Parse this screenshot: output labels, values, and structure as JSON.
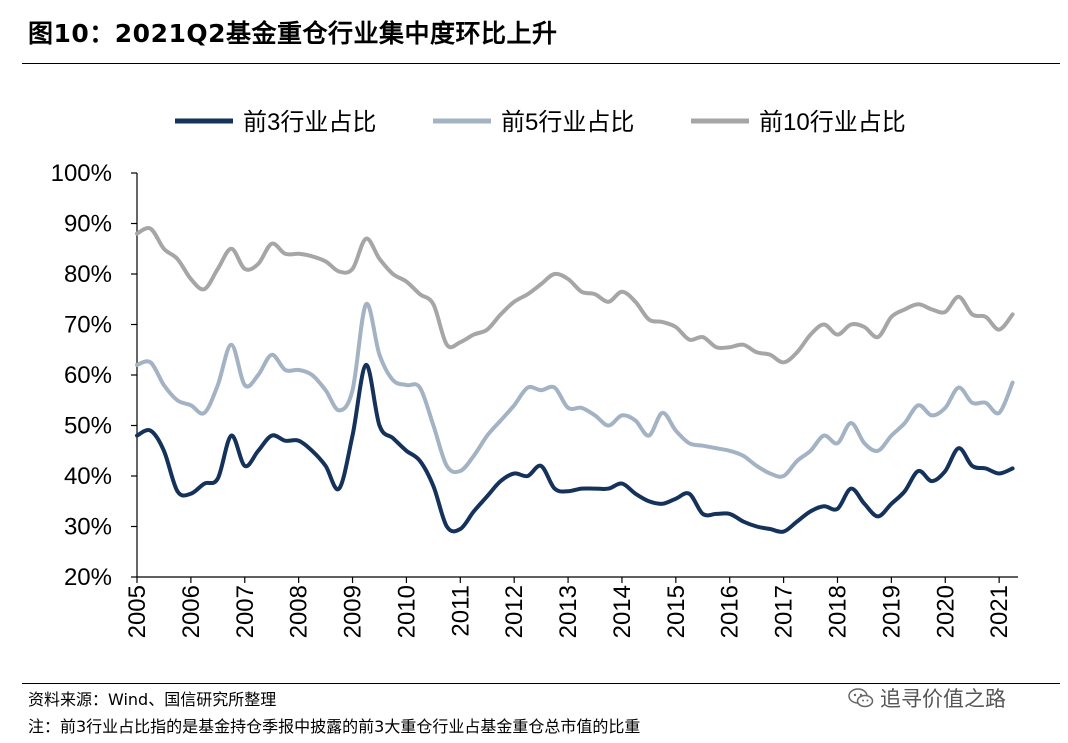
{
  "title": "图10：2021Q2基金重仓行业集中度环比上升",
  "footer": {
    "source": "资料来源：Wind、国信研究所整理",
    "note": "注：前3行业占比指的是基金持仓季报中披露的前3大重仓行业占基金重仓总市值的比重"
  },
  "watermark": {
    "text": "追寻价值之路",
    "icon": "wechat-icon"
  },
  "chart_data": {
    "type": "line",
    "ylim": [
      0.2,
      1.0
    ],
    "yticks": [
      "100%",
      "90%",
      "80%",
      "70%",
      "60%",
      "50%",
      "40%",
      "30%",
      "20%"
    ],
    "ytick_values": [
      1.0,
      0.9,
      0.8,
      0.7,
      0.6,
      0.5,
      0.4,
      0.3,
      0.2
    ],
    "xticks": [
      "2005",
      "2006",
      "2007",
      "2008",
      "2009",
      "2010",
      "2011",
      "2012",
      "2013",
      "2014",
      "2015",
      "2016",
      "2017",
      "2018",
      "2019",
      "2020",
      "2021"
    ],
    "xlim": [
      2005.0,
      2021.35
    ],
    "legend_position": "top",
    "x": [
      2005.0,
      2005.25,
      2005.5,
      2005.75,
      2006.0,
      2006.25,
      2006.5,
      2006.75,
      2007.0,
      2007.25,
      2007.5,
      2007.75,
      2008.0,
      2008.25,
      2008.5,
      2008.75,
      2009.0,
      2009.25,
      2009.5,
      2009.75,
      2010.0,
      2010.25,
      2010.5,
      2010.75,
      2011.0,
      2011.25,
      2011.5,
      2011.75,
      2012.0,
      2012.25,
      2012.5,
      2012.75,
      2013.0,
      2013.25,
      2013.5,
      2013.75,
      2014.0,
      2014.25,
      2014.5,
      2014.75,
      2015.0,
      2015.25,
      2015.5,
      2015.75,
      2016.0,
      2016.25,
      2016.5,
      2016.75,
      2017.0,
      2017.25,
      2017.5,
      2017.75,
      2018.0,
      2018.25,
      2018.5,
      2018.75,
      2019.0,
      2019.25,
      2019.5,
      2019.75,
      2020.0,
      2020.25,
      2020.5,
      2020.75,
      2021.0,
      2021.25
    ],
    "series": [
      {
        "name": "前3行业占比",
        "color": "#14325a",
        "width": 4,
        "values": [
          0.48,
          0.49,
          0.45,
          0.37,
          0.365,
          0.385,
          0.395,
          0.48,
          0.42,
          0.45,
          0.48,
          0.47,
          0.47,
          0.45,
          0.42,
          0.375,
          0.48,
          0.62,
          0.5,
          0.475,
          0.45,
          0.43,
          0.38,
          0.3,
          0.295,
          0.33,
          0.36,
          0.39,
          0.405,
          0.4,
          0.42,
          0.375,
          0.37,
          0.375,
          0.375,
          0.375,
          0.385,
          0.365,
          0.35,
          0.345,
          0.355,
          0.365,
          0.325,
          0.325,
          0.325,
          0.31,
          0.3,
          0.295,
          0.29,
          0.31,
          0.33,
          0.34,
          0.335,
          0.375,
          0.345,
          0.32,
          0.345,
          0.37,
          0.41,
          0.39,
          0.41,
          0.455,
          0.42,
          0.415,
          0.405,
          0.415
        ]
      },
      {
        "name": "前5行业占比",
        "color": "#a3b3c3",
        "width": 4,
        "values": [
          0.62,
          0.625,
          0.58,
          0.55,
          0.54,
          0.525,
          0.58,
          0.66,
          0.58,
          0.6,
          0.64,
          0.61,
          0.61,
          0.6,
          0.57,
          0.53,
          0.57,
          0.74,
          0.64,
          0.59,
          0.58,
          0.575,
          0.5,
          0.42,
          0.41,
          0.44,
          0.48,
          0.51,
          0.54,
          0.575,
          0.57,
          0.575,
          0.535,
          0.535,
          0.52,
          0.5,
          0.52,
          0.51,
          0.48,
          0.525,
          0.49,
          0.465,
          0.46,
          0.455,
          0.45,
          0.44,
          0.42,
          0.405,
          0.4,
          0.43,
          0.45,
          0.48,
          0.465,
          0.505,
          0.465,
          0.45,
          0.48,
          0.505,
          0.54,
          0.52,
          0.535,
          0.575,
          0.545,
          0.545,
          0.525,
          0.585
        ]
      },
      {
        "name": "前10行业占比",
        "color": "#a6a6a6",
        "width": 4,
        "values": [
          0.88,
          0.89,
          0.85,
          0.83,
          0.79,
          0.77,
          0.81,
          0.85,
          0.81,
          0.82,
          0.86,
          0.84,
          0.84,
          0.835,
          0.825,
          0.805,
          0.81,
          0.87,
          0.83,
          0.8,
          0.785,
          0.76,
          0.74,
          0.66,
          0.665,
          0.68,
          0.69,
          0.72,
          0.745,
          0.76,
          0.78,
          0.8,
          0.79,
          0.765,
          0.76,
          0.745,
          0.765,
          0.745,
          0.71,
          0.705,
          0.695,
          0.67,
          0.675,
          0.655,
          0.655,
          0.66,
          0.645,
          0.64,
          0.625,
          0.645,
          0.68,
          0.7,
          0.68,
          0.7,
          0.695,
          0.675,
          0.715,
          0.73,
          0.74,
          0.73,
          0.725,
          0.755,
          0.72,
          0.715,
          0.69,
          0.72
        ]
      }
    ]
  }
}
